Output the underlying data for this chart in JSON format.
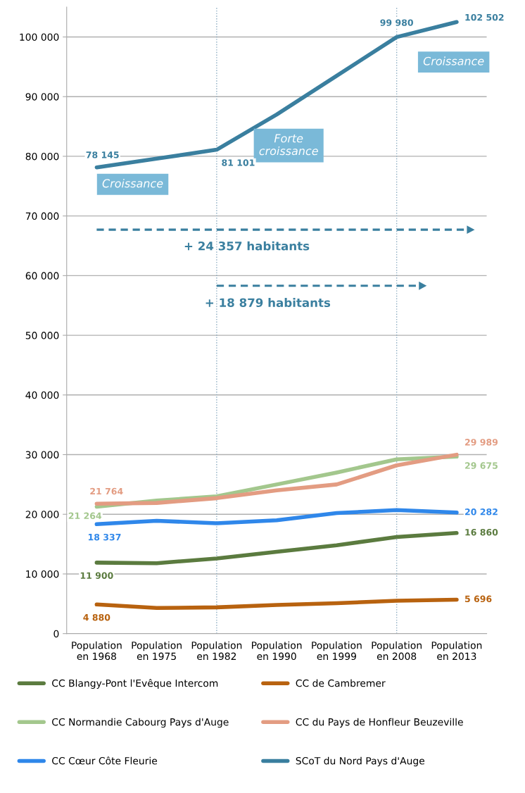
{
  "chart_data": {
    "type": "line",
    "categories": [
      "Population\nen 1968",
      "Population\nen 1975",
      "Population\nen 1982",
      "Population\nen 1990",
      "Population\nen 1999",
      "Population\nen 2008",
      "Population\nen 2013"
    ],
    "series": [
      {
        "name": "CC Blangy-Pont l'Evêque Intercom",
        "color": "#5b7b3f",
        "values": [
          11900,
          11800,
          12600,
          13700,
          14800,
          16200,
          16860
        ],
        "value_labels": [
          "11 900",
          null,
          null,
          null,
          null,
          null,
          "16 860"
        ]
      },
      {
        "name": "CC de Cambremer",
        "color": "#b8620f",
        "values": [
          4880,
          4300,
          4400,
          4800,
          5100,
          5500,
          5696
        ],
        "value_labels": [
          "4 880",
          null,
          null,
          null,
          null,
          null,
          "5 696"
        ]
      },
      {
        "name": "CC Normandie Cabourg Pays d'Auge",
        "color": "#a3c78d",
        "values": [
          21264,
          22300,
          23000,
          25000,
          27000,
          29200,
          29675
        ],
        "value_labels": [
          "21 264",
          null,
          null,
          null,
          null,
          null,
          "29 675"
        ]
      },
      {
        "name": "CC du Pays de Honfleur Beuzeville",
        "color": "#e39c82",
        "values": [
          21764,
          21900,
          22700,
          24000,
          25000,
          28200,
          29989
        ],
        "value_labels": [
          "21 764",
          null,
          null,
          null,
          null,
          null,
          "29 989"
        ]
      },
      {
        "name": "CC Cœur Côte Fleurie",
        "color": "#2f87ea",
        "values": [
          18337,
          18900,
          18500,
          19000,
          20200,
          20700,
          20282
        ],
        "value_labels": [
          "18 337",
          null,
          null,
          null,
          null,
          null,
          "20 282"
        ]
      },
      {
        "name": "SCoT du Nord Pays d'Auge",
        "color": "#3a7f9f",
        "values": [
          78145,
          79600,
          81101,
          87000,
          93500,
          99980,
          102502
        ],
        "value_labels": [
          "78 145",
          null,
          "81 101",
          null,
          null,
          "99 980",
          "102 502"
        ]
      }
    ],
    "ylim": [
      0,
      105000
    ],
    "yticks": [
      {
        "value": 0,
        "label": "0"
      },
      {
        "value": 10000,
        "label": "10 000"
      },
      {
        "value": 20000,
        "label": "20 000"
      },
      {
        "value": 30000,
        "label": "30 000"
      },
      {
        "value": 40000,
        "label": "40 000"
      },
      {
        "value": 50000,
        "label": "50 000"
      },
      {
        "value": 60000,
        "label": "60 000"
      },
      {
        "value": 70000,
        "label": "70 000"
      },
      {
        "value": 80000,
        "label": "80 000"
      },
      {
        "value": 90000,
        "label": "90 000"
      },
      {
        "value": 100000,
        "label": "100 000"
      }
    ],
    "grid": "y",
    "legend": "bottom",
    "marker": "none",
    "line_style": "solid",
    "ref_lines": [
      {
        "axis": "x",
        "value": "Population\nen 1982",
        "color": "#8aaac0",
        "line_style": "dotted"
      },
      {
        "axis": "x",
        "value": "Population\nen 2008",
        "color": "#8aaac0",
        "line_style": "dotted"
      }
    ],
    "annotations": [
      "Croissance",
      "Forte\ncroissance",
      "Croissance",
      "+ 24 357 habitants",
      "+ 18 879 habitants"
    ]
  }
}
